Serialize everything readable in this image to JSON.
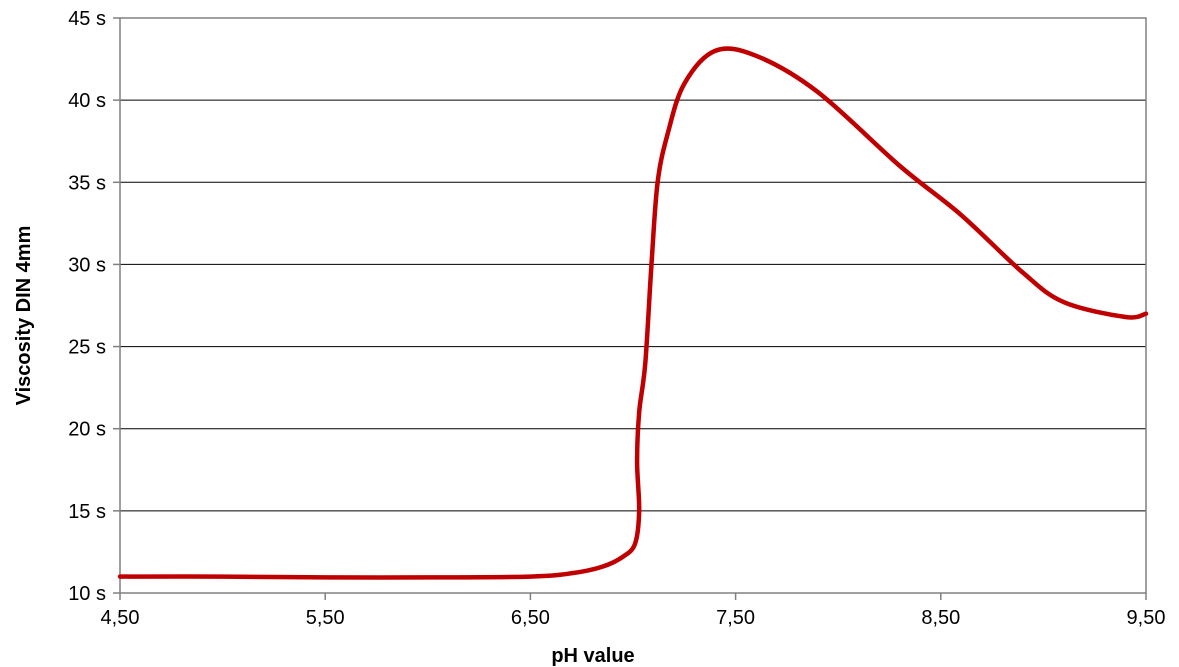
{
  "chart_data": {
    "type": "line",
    "title": "",
    "xlabel": "pH value",
    "ylabel": "Viscosity DIN 4mm",
    "xlim": [
      4.5,
      9.5
    ],
    "ylim": [
      10,
      45
    ],
    "x_ticks": [
      4.5,
      5.5,
      6.5,
      7.5,
      8.5,
      9.5
    ],
    "x_tick_labels": [
      "4,50",
      "5,50",
      "6,50",
      "7,50",
      "8,50",
      "9,50"
    ],
    "y_ticks": [
      10,
      15,
      20,
      25,
      30,
      35,
      40,
      45
    ],
    "y_tick_labels": [
      "10 s",
      "15 s",
      "20 s",
      "25 s",
      "30 s",
      "35 s",
      "40 s",
      "45 s"
    ],
    "grid": "horizontal",
    "legend": "none",
    "series": [
      {
        "color": "#c00000",
        "points": [
          [
            4.5,
            11.0
          ],
          [
            5.0,
            11.0
          ],
          [
            5.5,
            10.95
          ],
          [
            6.0,
            10.95
          ],
          [
            6.5,
            11.0
          ],
          [
            6.7,
            11.2
          ],
          [
            6.85,
            11.6
          ],
          [
            6.95,
            12.2
          ],
          [
            7.01,
            13.0
          ],
          [
            7.03,
            15.0
          ],
          [
            7.02,
            18.0
          ],
          [
            7.03,
            21.0
          ],
          [
            7.06,
            24.0
          ],
          [
            7.09,
            30.0
          ],
          [
            7.12,
            35.0
          ],
          [
            7.17,
            38.0
          ],
          [
            7.25,
            41.0
          ],
          [
            7.4,
            43.0
          ],
          [
            7.6,
            42.7
          ],
          [
            7.9,
            40.5
          ],
          [
            8.3,
            36.0
          ],
          [
            8.6,
            33.0
          ],
          [
            8.9,
            29.5
          ],
          [
            9.1,
            27.7
          ],
          [
            9.4,
            26.8
          ],
          [
            9.5,
            27.0
          ]
        ]
      }
    ]
  }
}
